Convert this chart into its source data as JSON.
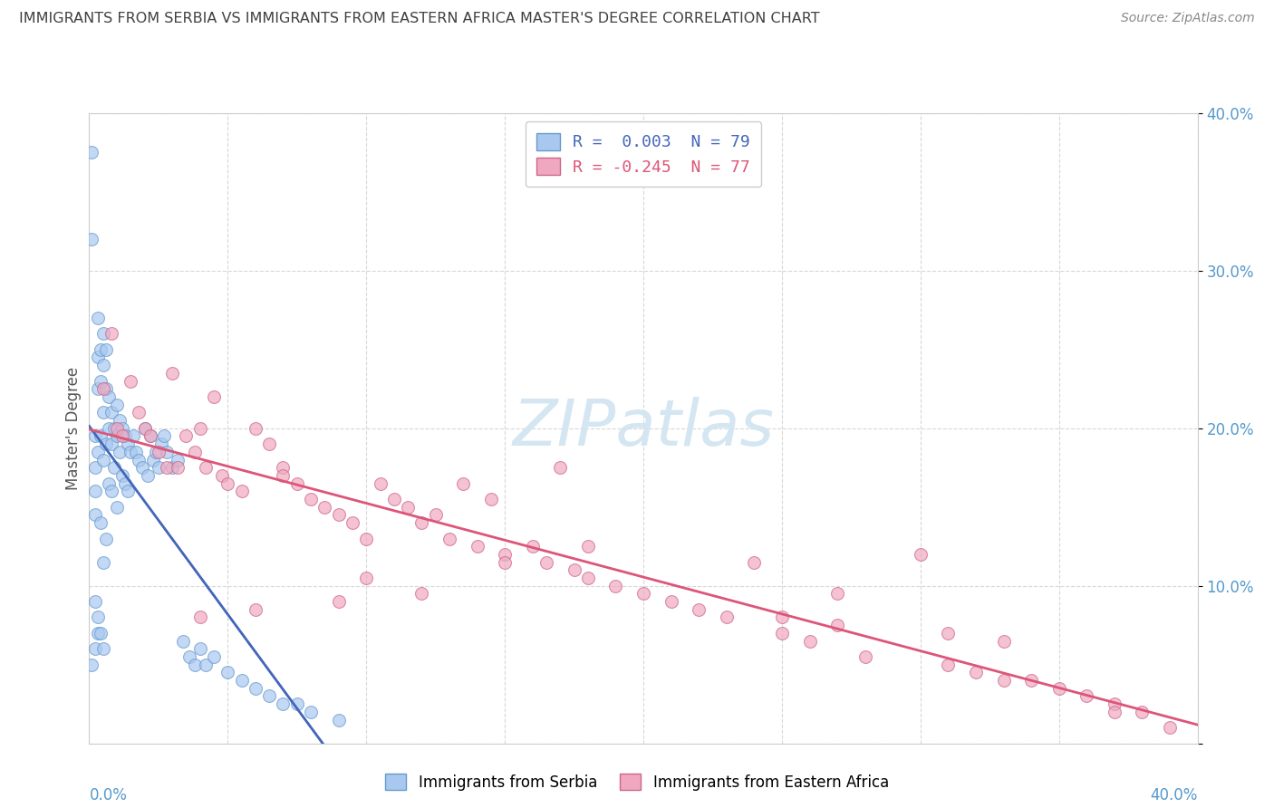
{
  "title": "IMMIGRANTS FROM SERBIA VS IMMIGRANTS FROM EASTERN AFRICA MASTER'S DEGREE CORRELATION CHART",
  "source": "Source: ZipAtlas.com",
  "ylabel": "Master's Degree",
  "ylim": [
    0.0,
    0.4
  ],
  "xlim": [
    0.0,
    0.4
  ],
  "serbia_color": "#a8c8f0",
  "serbia_edge_color": "#6699cc",
  "eastern_africa_color": "#f0a8c0",
  "eastern_africa_edge_color": "#cc6688",
  "serbia_line_color": "#4466bb",
  "eastern_africa_line_color": "#dd5577",
  "watermark_color": "#d0e4f0",
  "background_color": "#ffffff",
  "grid_color": "#d8d8d8",
  "axis_label_color": "#5599cc",
  "title_color": "#404040",
  "source_color": "#888888",
  "legend_text_color_1": "#4466bb",
  "legend_text_color_2": "#dd5577",
  "legend_label_1": "R =  0.003  N = 79",
  "legend_label_2": "R = -0.245  N = 77",
  "bottom_legend_1": "Immigrants from Serbia",
  "bottom_legend_2": "Immigrants from Eastern Africa",
  "serbia_x": [
    0.001,
    0.001,
    0.002,
    0.002,
    0.002,
    0.002,
    0.002,
    0.003,
    0.003,
    0.003,
    0.003,
    0.003,
    0.004,
    0.004,
    0.004,
    0.004,
    0.005,
    0.005,
    0.005,
    0.005,
    0.005,
    0.006,
    0.006,
    0.006,
    0.006,
    0.007,
    0.007,
    0.007,
    0.008,
    0.008,
    0.008,
    0.009,
    0.009,
    0.01,
    0.01,
    0.01,
    0.011,
    0.011,
    0.012,
    0.012,
    0.013,
    0.013,
    0.014,
    0.014,
    0.015,
    0.016,
    0.017,
    0.018,
    0.019,
    0.02,
    0.021,
    0.022,
    0.023,
    0.024,
    0.025,
    0.026,
    0.027,
    0.028,
    0.03,
    0.032,
    0.034,
    0.036,
    0.038,
    0.04,
    0.042,
    0.045,
    0.05,
    0.055,
    0.06,
    0.065,
    0.07,
    0.075,
    0.08,
    0.09,
    0.001,
    0.002,
    0.003,
    0.004,
    0.005
  ],
  "serbia_y": [
    0.375,
    0.32,
    0.195,
    0.175,
    0.16,
    0.145,
    0.06,
    0.27,
    0.245,
    0.225,
    0.185,
    0.07,
    0.25,
    0.23,
    0.195,
    0.14,
    0.26,
    0.24,
    0.21,
    0.18,
    0.115,
    0.25,
    0.225,
    0.19,
    0.13,
    0.22,
    0.2,
    0.165,
    0.21,
    0.19,
    0.16,
    0.2,
    0.175,
    0.215,
    0.195,
    0.15,
    0.205,
    0.185,
    0.2,
    0.17,
    0.195,
    0.165,
    0.19,
    0.16,
    0.185,
    0.195,
    0.185,
    0.18,
    0.175,
    0.2,
    0.17,
    0.195,
    0.18,
    0.185,
    0.175,
    0.19,
    0.195,
    0.185,
    0.175,
    0.18,
    0.065,
    0.055,
    0.05,
    0.06,
    0.05,
    0.055,
    0.045,
    0.04,
    0.035,
    0.03,
    0.025,
    0.025,
    0.02,
    0.015,
    0.05,
    0.09,
    0.08,
    0.07,
    0.06
  ],
  "africa_x": [
    0.005,
    0.008,
    0.01,
    0.012,
    0.015,
    0.018,
    0.02,
    0.022,
    0.025,
    0.028,
    0.03,
    0.032,
    0.035,
    0.038,
    0.04,
    0.042,
    0.045,
    0.048,
    0.05,
    0.055,
    0.06,
    0.065,
    0.07,
    0.075,
    0.08,
    0.085,
    0.09,
    0.095,
    0.1,
    0.105,
    0.11,
    0.115,
    0.12,
    0.125,
    0.13,
    0.135,
    0.14,
    0.145,
    0.15,
    0.16,
    0.165,
    0.17,
    0.175,
    0.18,
    0.19,
    0.2,
    0.21,
    0.22,
    0.23,
    0.24,
    0.25,
    0.26,
    0.27,
    0.28,
    0.3,
    0.31,
    0.32,
    0.33,
    0.34,
    0.35,
    0.36,
    0.37,
    0.38,
    0.39,
    0.25,
    0.27,
    0.31,
    0.33,
    0.37,
    0.1,
    0.12,
    0.09,
    0.06,
    0.04,
    0.07,
    0.15,
    0.18
  ],
  "africa_y": [
    0.225,
    0.26,
    0.2,
    0.195,
    0.23,
    0.21,
    0.2,
    0.195,
    0.185,
    0.175,
    0.235,
    0.175,
    0.195,
    0.185,
    0.2,
    0.175,
    0.22,
    0.17,
    0.165,
    0.16,
    0.2,
    0.19,
    0.175,
    0.165,
    0.155,
    0.15,
    0.145,
    0.14,
    0.13,
    0.165,
    0.155,
    0.15,
    0.14,
    0.145,
    0.13,
    0.165,
    0.125,
    0.155,
    0.12,
    0.125,
    0.115,
    0.175,
    0.11,
    0.105,
    0.1,
    0.095,
    0.09,
    0.085,
    0.08,
    0.115,
    0.07,
    0.065,
    0.095,
    0.055,
    0.12,
    0.05,
    0.045,
    0.04,
    0.04,
    0.035,
    0.03,
    0.025,
    0.02,
    0.01,
    0.08,
    0.075,
    0.07,
    0.065,
    0.02,
    0.105,
    0.095,
    0.09,
    0.085,
    0.08,
    0.17,
    0.115,
    0.125
  ]
}
